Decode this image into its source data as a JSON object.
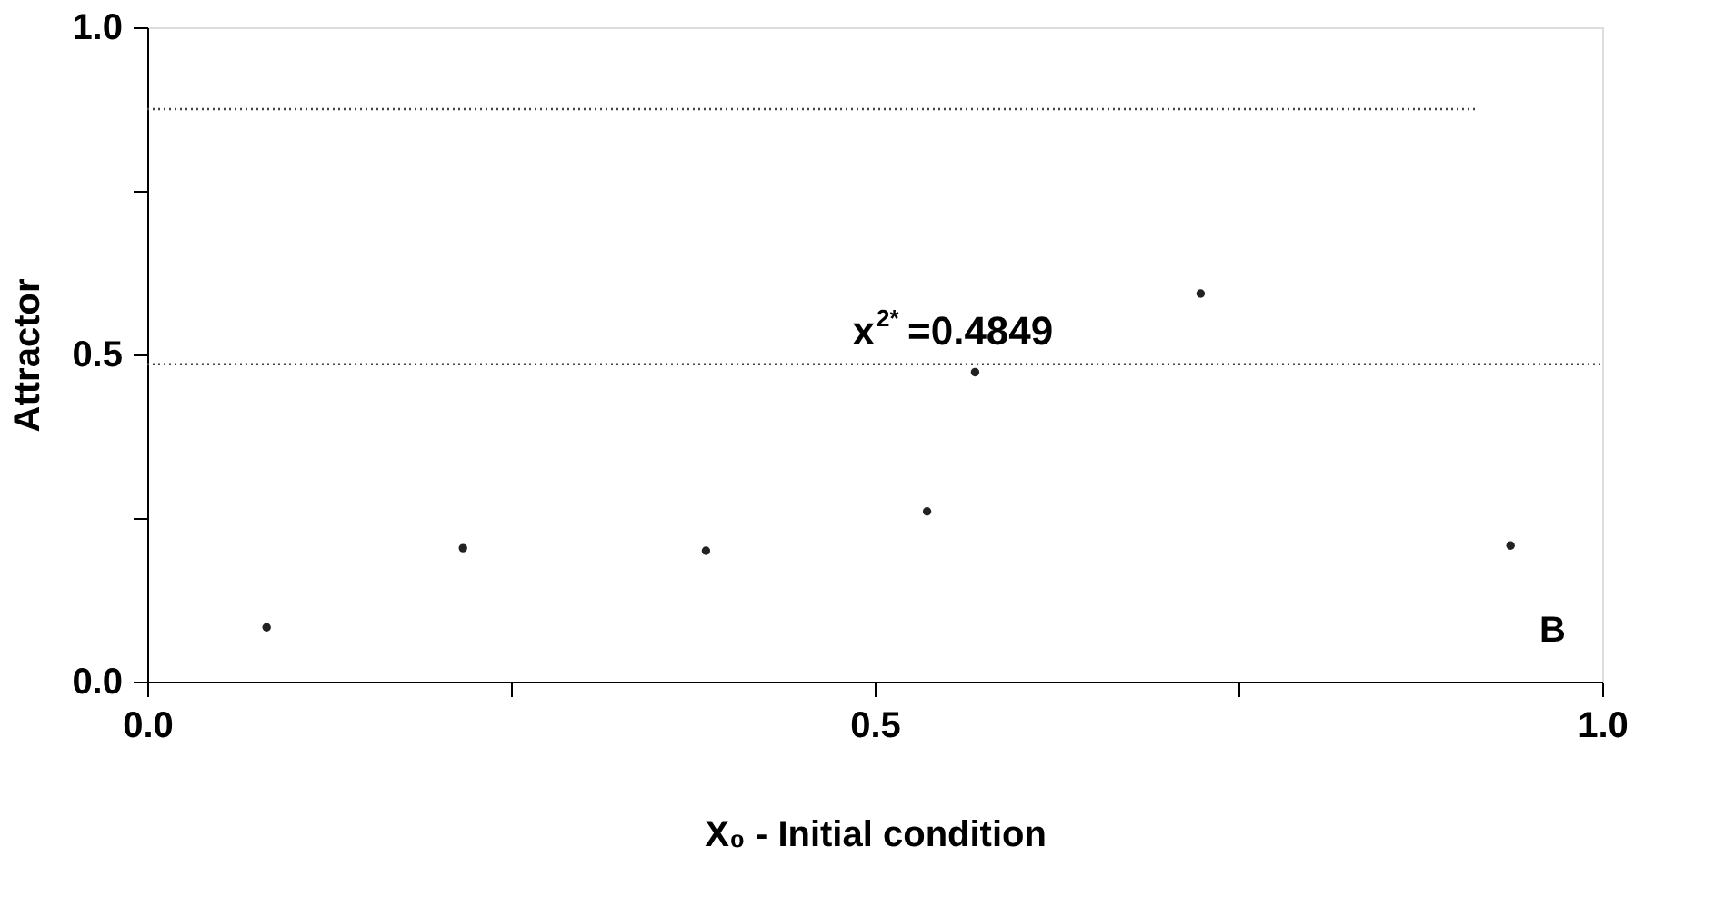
{
  "chart_data": {
    "type": "line",
    "xlabel": "X₀ - Initial condition",
    "ylabel": "Attractor",
    "xlim": [
      0,
      1
    ],
    "ylim": [
      0,
      1
    ],
    "xticks": [
      {
        "value": 0,
        "label": "0.0"
      },
      {
        "value": 0.25,
        "label": null
      },
      {
        "value": 0.5,
        "label": "0.5"
      },
      {
        "value": 0.75,
        "label": null
      },
      {
        "value": 1,
        "label": "1.0"
      }
    ],
    "yticks": [
      {
        "value": 0,
        "label": "0.0"
      },
      {
        "value": 0.25,
        "label": null
      },
      {
        "value": 0.5,
        "label": "0.5"
      },
      {
        "value": 0.75,
        "label": null
      },
      {
        "value": 1,
        "label": "1.0"
      }
    ],
    "grid": false,
    "line_style": "dotted",
    "series": [
      {
        "type": "line",
        "color": "#444444",
        "x": [
          0,
          0.915
        ],
        "values": [
          0.875,
          0.875
        ]
      },
      {
        "type": "line",
        "color": "#444444",
        "x": [
          0,
          1
        ],
        "values": [
          0.485,
          0.485
        ]
      },
      {
        "type": "scatter",
        "color": "#222222",
        "marker": "circle",
        "x": [
          0.082,
          0.217,
          0.384,
          0.536,
          0.569,
          0.724,
          0.937
        ],
        "values": [
          0.083,
          0.204,
          0.2,
          0.26,
          0.473,
          0.593,
          0.208
        ]
      }
    ],
    "annotations": [
      {
        "text": "x$^{2*}$=0.4849",
        "x": 0.5,
        "y": 0.4849
      },
      "B"
    ]
  }
}
